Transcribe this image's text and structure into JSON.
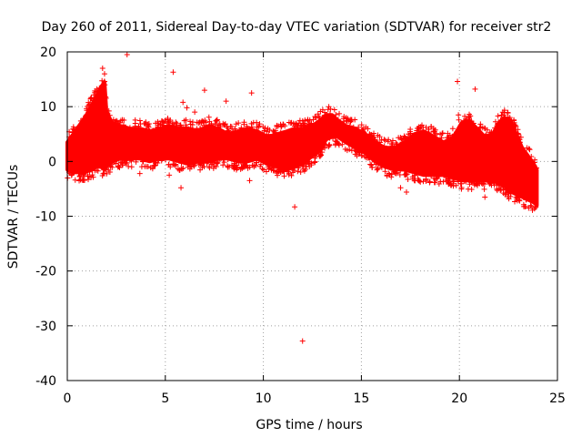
{
  "chart_data": {
    "type": "scatter",
    "title": "Day 260 of 2011, Sidereal Day-to-day VTEC variation (SDTVAR) for receiver str2",
    "xlabel": "GPS time / hours",
    "ylabel": "SDTVAR / TECUs",
    "xlim": [
      0,
      25
    ],
    "ylim": [
      -40,
      20
    ],
    "x_ticks": [
      0,
      5,
      10,
      15,
      20,
      25
    ],
    "y_ticks": [
      -40,
      -30,
      -20,
      -10,
      0,
      10,
      20
    ],
    "grid": true,
    "marker": "plus",
    "series": [
      {
        "name": "SDTVAR",
        "color": "#ff0000",
        "envelope": {
          "x": [
            0.0,
            0.3,
            0.6,
            0.9,
            1.2,
            1.5,
            1.7,
            1.9,
            2.0,
            2.3,
            2.7,
            3.2,
            3.7,
            4.2,
            4.7,
            5.2,
            5.7,
            6.2,
            6.7,
            7.2,
            7.7,
            8.2,
            8.7,
            9.2,
            9.7,
            10.2,
            10.7,
            11.2,
            11.6,
            12.0,
            12.5,
            12.9,
            13.2,
            13.5,
            13.8,
            14.2,
            14.7,
            15.2,
            15.7,
            16.2,
            16.7,
            17.2,
            17.7,
            18.2,
            18.7,
            19.2,
            19.7,
            20.1,
            20.5,
            20.9,
            21.3,
            21.7,
            22.0,
            22.3,
            22.6,
            22.9,
            23.2,
            23.5,
            23.8,
            23.95
          ],
          "upper": [
            3.5,
            5.0,
            6.5,
            8.0,
            10.0,
            12.0,
            13.5,
            14.5,
            9.0,
            7.0,
            6.5,
            6.0,
            6.0,
            5.5,
            6.0,
            6.5,
            6.0,
            6.0,
            5.5,
            6.5,
            6.0,
            5.0,
            5.5,
            6.0,
            5.5,
            4.5,
            5.0,
            5.5,
            6.0,
            6.0,
            6.5,
            7.5,
            8.5,
            8.5,
            7.5,
            6.5,
            6.0,
            5.0,
            3.5,
            2.5,
            2.5,
            3.5,
            5.0,
            5.5,
            4.5,
            3.5,
            4.5,
            7.0,
            7.5,
            6.0,
            4.5,
            5.0,
            7.0,
            8.0,
            7.5,
            5.0,
            2.5,
            1.0,
            -0.5,
            -1.5
          ],
          "lower": [
            -1.5,
            -2.0,
            -2.0,
            -2.0,
            -1.5,
            -1.0,
            -1.0,
            -1.5,
            -1.0,
            0.0,
            0.5,
            0.5,
            0.5,
            0.0,
            0.5,
            0.5,
            0.0,
            -0.5,
            0.0,
            0.0,
            0.5,
            0.5,
            0.0,
            0.0,
            0.5,
            -0.5,
            -1.0,
            -1.5,
            -1.0,
            -0.5,
            1.0,
            2.0,
            4.0,
            4.5,
            4.5,
            3.5,
            2.5,
            1.5,
            0.0,
            -1.0,
            -1.5,
            -1.5,
            -2.0,
            -2.5,
            -2.5,
            -2.5,
            -3.0,
            -3.5,
            -3.5,
            -3.5,
            -3.5,
            -3.5,
            -4.0,
            -4.5,
            -5.5,
            -6.0,
            -6.5,
            -7.0,
            -7.5,
            -8.0
          ]
        },
        "outliers": {
          "x": [
            1.8,
            3.05,
            5.4,
            5.9,
            6.1,
            6.5,
            7.0,
            8.1,
            9.4,
            9.3,
            11.6,
            12.0,
            3.7,
            5.2,
            5.8,
            17.0,
            17.3,
            19.9,
            19.95,
            20.5,
            20.8,
            22.0,
            22.5,
            23.0,
            21.3,
            1.9
          ],
          "y": [
            17.0,
            19.5,
            16.3,
            10.8,
            9.8,
            9.0,
            13.0,
            11.0,
            12.5,
            -3.5,
            -8.3,
            -32.8,
            -2.2,
            -2.5,
            -4.8,
            -4.8,
            -5.6,
            14.6,
            8.5,
            8.0,
            13.2,
            -5.0,
            -5.5,
            -5.8,
            -6.5,
            16.0
          ]
        }
      }
    ]
  }
}
